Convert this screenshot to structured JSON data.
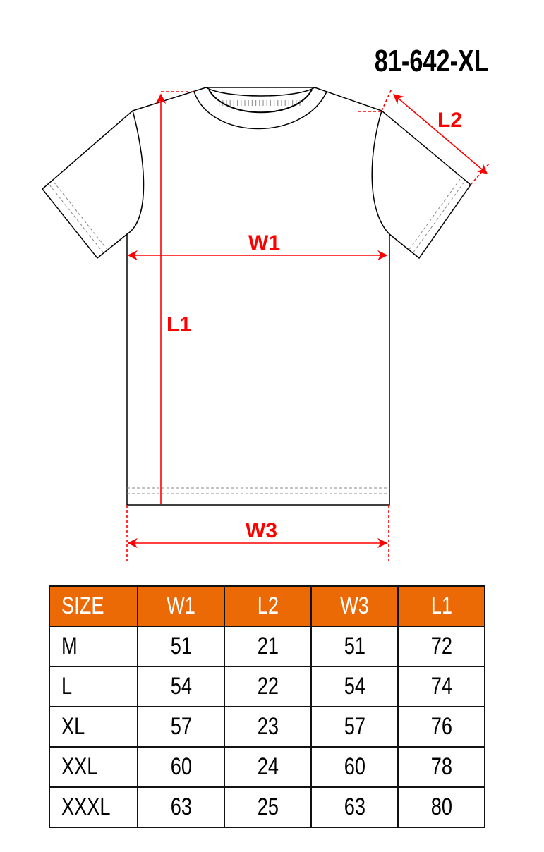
{
  "title": "81-642-XL",
  "diagram": {
    "labels": {
      "w1": "W1",
      "l1": "L1",
      "l2": "L2",
      "w3": "W3"
    },
    "line_color": "#000000",
    "measure_color": "#ff0000"
  },
  "table": {
    "header_color": "#ec6a06",
    "headers": [
      "SIZE",
      "W1",
      "L2",
      "W3",
      "L1"
    ],
    "rows": [
      [
        "M",
        "51",
        "21",
        "51",
        "72"
      ],
      [
        "L",
        "54",
        "22",
        "54",
        "74"
      ],
      [
        "XL",
        "57",
        "23",
        "57",
        "76"
      ],
      [
        "XXL",
        "60",
        "24",
        "60",
        "78"
      ],
      [
        "XXXL",
        "63",
        "25",
        "63",
        "80"
      ]
    ]
  }
}
